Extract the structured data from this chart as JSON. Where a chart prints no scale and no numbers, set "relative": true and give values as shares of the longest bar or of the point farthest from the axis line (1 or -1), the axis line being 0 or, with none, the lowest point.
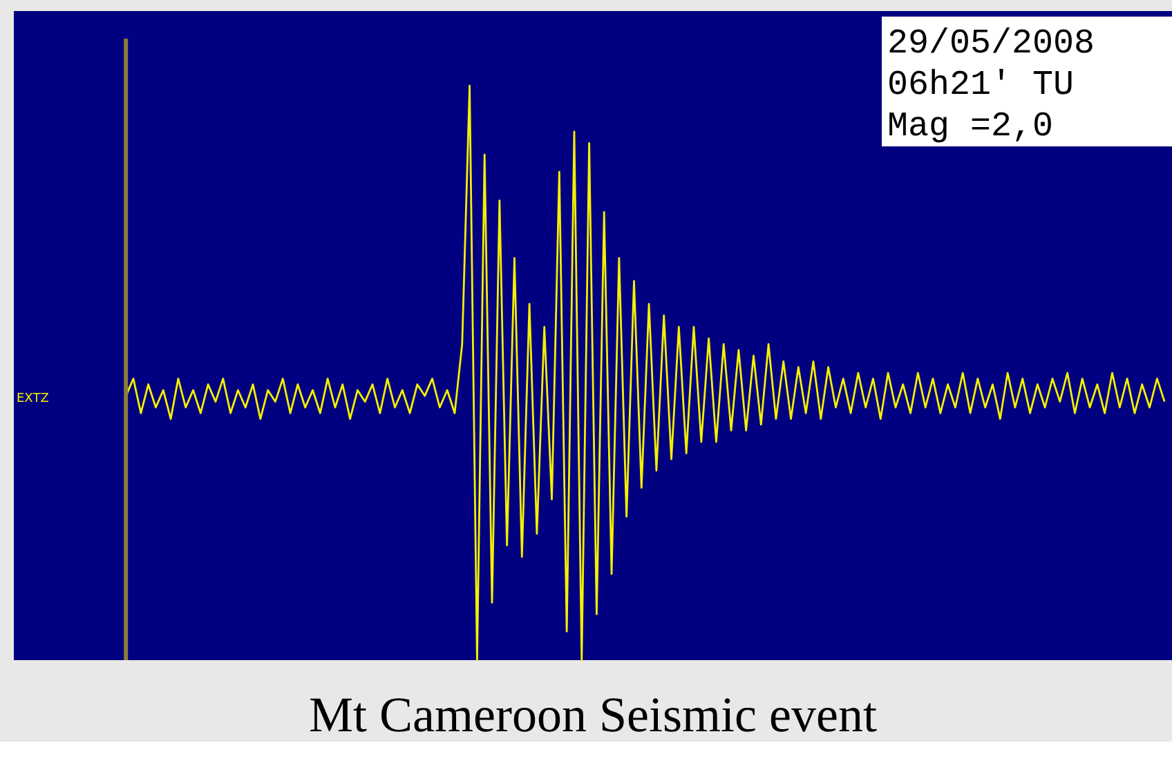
{
  "chart_data": {
    "type": "line",
    "title": "Mt Cameroon Seismic event",
    "relative": true,
    "grid": false,
    "color": "#f5ef00",
    "categories": [
      null,
      null,
      null,
      null,
      null,
      null,
      null,
      null,
      null,
      null,
      null,
      null,
      null,
      null,
      null,
      null,
      null,
      null,
      null,
      null,
      null,
      null,
      null,
      null,
      null,
      null,
      null,
      null,
      null,
      null,
      null,
      null,
      null,
      null,
      null,
      null,
      null,
      null,
      null,
      null,
      null,
      null,
      null,
      null,
      null,
      null,
      null,
      null,
      null,
      null,
      null,
      null,
      null,
      null,
      null,
      null,
      null,
      null,
      null,
      null,
      null,
      null,
      null,
      null,
      null,
      null,
      null,
      null,
      null,
      null,
      null,
      null,
      null,
      null,
      null,
      null,
      null,
      null,
      null,
      null,
      null,
      null,
      null,
      null,
      null,
      null,
      null,
      null,
      null,
      null,
      null,
      null,
      null,
      null,
      null,
      null,
      null,
      null,
      null,
      null,
      null,
      null,
      null,
      null,
      null,
      null,
      null,
      null,
      null,
      null,
      null,
      null,
      null,
      null,
      null,
      null,
      null,
      null,
      null,
      null,
      null,
      null,
      null,
      null,
      null,
      null,
      null,
      null,
      null,
      null,
      null,
      null,
      null,
      null,
      null,
      null,
      null,
      null,
      null,
      null
    ],
    "values": [
      0.46,
      0.49,
      0.43,
      0.48,
      0.44,
      0.47,
      0.42,
      0.49,
      0.44,
      0.47,
      0.43,
      0.48,
      0.45,
      0.49,
      0.43,
      0.47,
      0.44,
      0.48,
      0.42,
      0.47,
      0.45,
      0.49,
      0.43,
      0.48,
      0.44,
      0.47,
      0.43,
      0.49,
      0.44,
      0.48,
      0.42,
      0.47,
      0.45,
      0.48,
      0.43,
      0.49,
      0.44,
      0.47,
      0.43,
      0.48,
      0.46,
      0.49,
      0.44,
      0.47,
      0.43,
      0.55,
      1.0,
      0.0,
      0.88,
      0.1,
      0.8,
      0.2,
      0.7,
      0.18,
      0.62,
      0.22,
      0.58,
      0.28,
      0.85,
      0.05,
      0.92,
      0.0,
      0.9,
      0.08,
      0.78,
      0.15,
      0.7,
      0.25,
      0.66,
      0.3,
      0.62,
      0.33,
      0.6,
      0.35,
      0.58,
      0.36,
      0.58,
      0.38,
      0.56,
      0.38,
      0.55,
      0.4,
      0.54,
      0.4,
      0.53,
      0.41,
      0.55,
      0.42,
      0.52,
      0.42,
      0.51,
      0.43,
      0.52,
      0.42,
      0.51,
      0.44,
      0.49,
      0.43,
      0.5,
      0.44,
      0.49,
      0.42,
      0.5,
      0.44,
      0.48,
      0.43,
      0.5,
      0.44,
      0.49,
      0.43,
      0.48,
      0.44,
      0.5,
      0.43,
      0.49,
      0.44,
      0.48,
      0.42,
      0.5,
      0.44,
      0.49,
      0.43,
      0.48,
      0.44,
      0.49,
      0.45,
      0.5,
      0.43,
      0.49,
      0.44,
      0.48,
      0.43,
      0.5,
      0.44,
      0.49,
      0.43,
      0.48,
      0.44,
      0.49,
      0.45
    ],
    "annotations": [
      "EXTZ",
      "29/05/2008",
      "06h21' TU",
      "Mag =2,0"
    ]
  }
}
